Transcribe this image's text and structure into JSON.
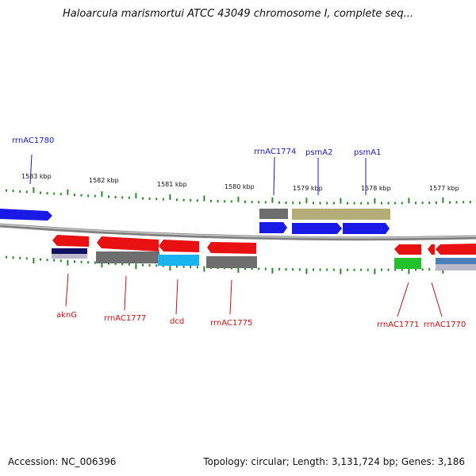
{
  "title": "Haloarcula marismortui ATCC 43049 chromosome I, complete seq...",
  "footer": {
    "accession": "Accession: NC_006396",
    "summary": "Topology: circular; Length: 3,131,724 bp; Genes: 3,186"
  },
  "colors": {
    "forward_label": "#1818c8",
    "reverse_label": "#d01010",
    "tick": "#2a8a2a",
    "backbone": "#808080",
    "red": "#e81010",
    "blue": "#1a1ae6",
    "gray": "#6e6e6e",
    "olive": "#b4ad78",
    "cyan": "#19b4ef",
    "navy": "#101060",
    "green": "#22c02a",
    "steel": "#4a7fb8"
  },
  "scale_labels": [
    "1583 kbp",
    "1582 kbp",
    "1581 kbp",
    "1580 kbp",
    "1579 kbp",
    "1578 kbp",
    "1577 kbp"
  ],
  "genes": {
    "forward": [
      "rrnAC1780",
      "rrnAC1774",
      "psmA2",
      "psmA1"
    ],
    "reverse": [
      "aknG",
      "rrnAC1777",
      "dcd",
      "rrnAC1775",
      "rrnAC1771",
      "rrnAC1770"
    ]
  }
}
